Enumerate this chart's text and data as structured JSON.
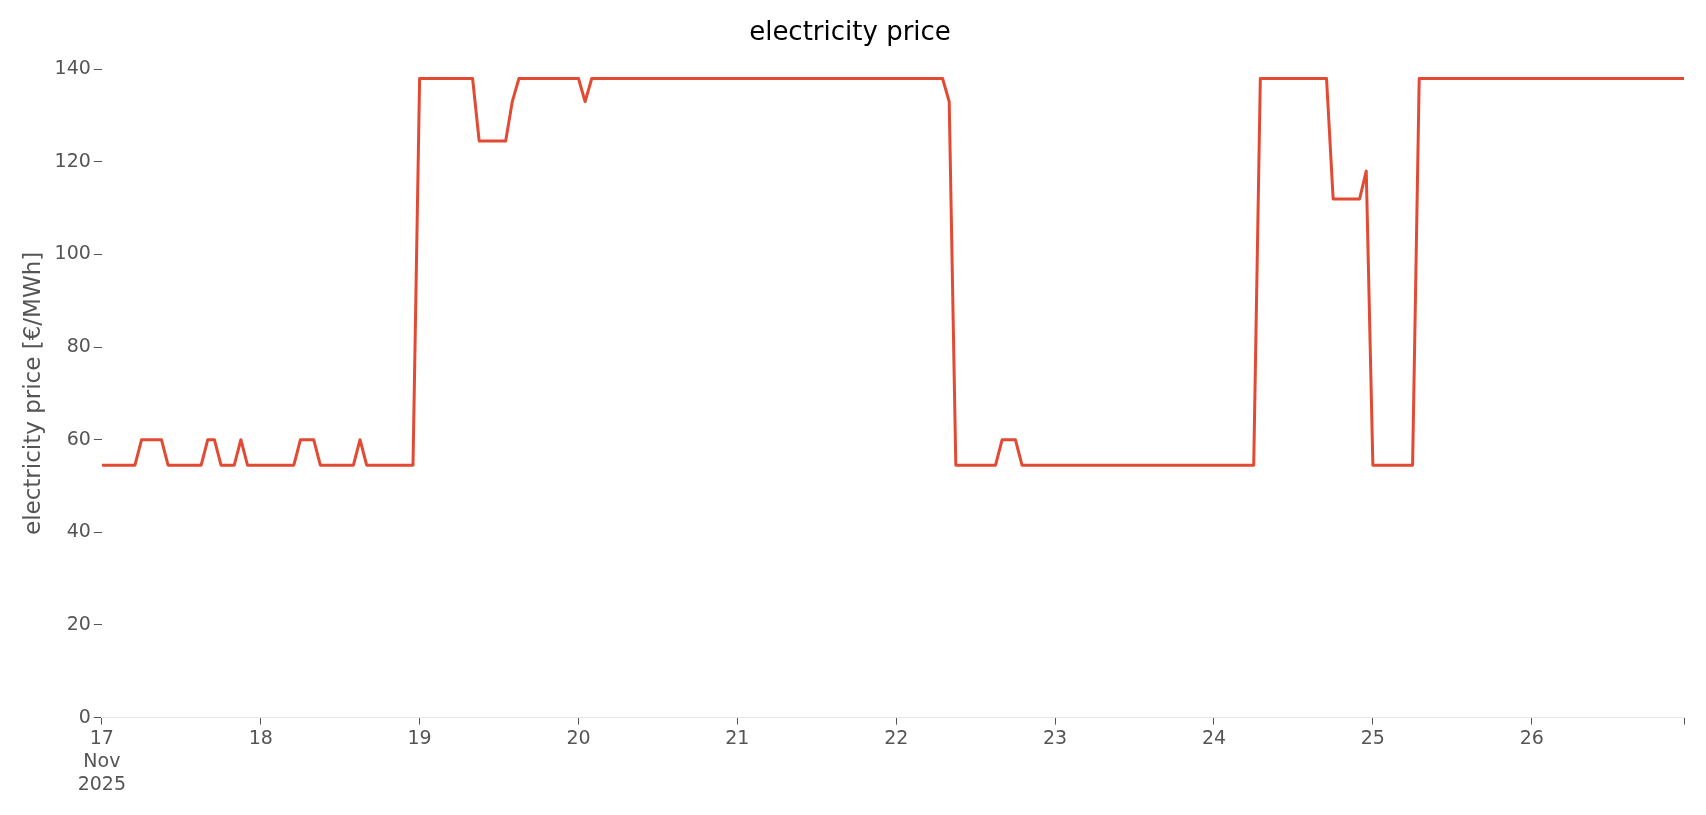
{
  "chart_data": {
    "type": "line",
    "title": "electricity price",
    "ylabel": "electricity price [€/MWh]",
    "x": [
      "2025-11-17T00:00",
      "2025-11-17T05:00",
      "2025-11-17T06:00",
      "2025-11-17T09:00",
      "2025-11-17T10:00",
      "2025-11-17T15:00",
      "2025-11-17T16:00",
      "2025-11-17T17:00",
      "2025-11-17T18:00",
      "2025-11-17T20:00",
      "2025-11-17T21:00",
      "2025-11-17T22:00",
      "2025-11-18T05:00",
      "2025-11-18T06:00",
      "2025-11-18T08:00",
      "2025-11-18T09:00",
      "2025-11-18T14:00",
      "2025-11-18T15:00",
      "2025-11-18T16:00",
      "2025-11-18T23:00",
      "2025-11-19T00:00",
      "2025-11-19T08:00",
      "2025-11-19T09:00",
      "2025-11-19T13:00",
      "2025-11-19T14:00",
      "2025-11-19T15:00",
      "2025-11-20T00:00",
      "2025-11-20T01:00",
      "2025-11-20T02:00",
      "2025-11-22T07:00",
      "2025-11-22T08:00",
      "2025-11-22T09:00",
      "2025-11-22T15:00",
      "2025-11-22T16:00",
      "2025-11-22T18:00",
      "2025-11-22T19:00",
      "2025-11-24T06:00",
      "2025-11-24T07:00",
      "2025-11-24T17:00",
      "2025-11-24T18:00",
      "2025-11-24T22:00",
      "2025-11-24T23:00",
      "2025-11-25T00:00",
      "2025-11-25T06:00",
      "2025-11-25T07:00",
      "2025-11-26T23:00"
    ],
    "series": [
      {
        "color": "#e24a33",
        "values": [
          54.5,
          54.5,
          60,
          60,
          54.5,
          54.5,
          60,
          60,
          54.5,
          54.5,
          60,
          54.5,
          54.5,
          60,
          60,
          54.5,
          54.5,
          60,
          54.5,
          54.5,
          138,
          138,
          124.5,
          124.5,
          133,
          138,
          138,
          133,
          138,
          138,
          133,
          54.5,
          54.5,
          60,
          60,
          54.5,
          54.5,
          138,
          138,
          112,
          112,
          118,
          54.5,
          54.5,
          138,
          138
        ]
      }
    ],
    "xlim": [
      "2025-11-17T00:00",
      "2025-11-26T23:00"
    ],
    "xticks": [
      {
        "value": "2025-11-17",
        "label": "17\nNov\n2025"
      },
      {
        "value": "2025-11-18",
        "label": "18"
      },
      {
        "value": "2025-11-19",
        "label": "19"
      },
      {
        "value": "2025-11-20",
        "label": "20"
      },
      {
        "value": "2025-11-21",
        "label": "21"
      },
      {
        "value": "2025-11-22",
        "label": "22"
      },
      {
        "value": "2025-11-23",
        "label": "23"
      },
      {
        "value": "2025-11-24",
        "label": "24"
      },
      {
        "value": "2025-11-25",
        "label": "25"
      },
      {
        "value": "2025-11-26",
        "label": "26"
      },
      {
        "value": "2025-11-26T23:00",
        "label": null
      }
    ],
    "ylim": [
      0,
      140
    ],
    "yticks": [
      0,
      20,
      40,
      60,
      80,
      100,
      120,
      140
    ],
    "grid": false,
    "legend": false,
    "marker": "none",
    "line_style": "solid"
  }
}
